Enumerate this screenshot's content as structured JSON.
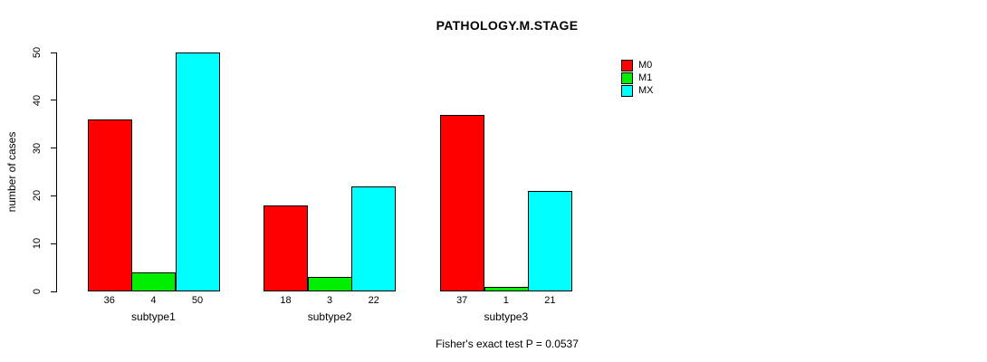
{
  "title": "PATHOLOGY.M.STAGE",
  "footer": "Fisher's exact test P = 0.0537",
  "chart_data": {
    "type": "bar",
    "title": "PATHOLOGY.M.STAGE",
    "xlabel": "",
    "ylabel": "number of cases",
    "ylim": [
      0,
      50
    ],
    "yticks": [
      0,
      10,
      20,
      30,
      40,
      50
    ],
    "categories": [
      "subtype1",
      "subtype2",
      "subtype3"
    ],
    "series": [
      {
        "name": "M0",
        "color": "#ff0000",
        "values": [
          36,
          18,
          37
        ]
      },
      {
        "name": "M1",
        "color": "#00ee00",
        "values": [
          4,
          3,
          1
        ]
      },
      {
        "name": "MX",
        "color": "#00ffff",
        "values": [
          50,
          22,
          21
        ]
      }
    ],
    "bar_value_labels": true,
    "grid": false,
    "legend_position": "top-right",
    "annotation": "Fisher's exact test P = 0.0537"
  }
}
